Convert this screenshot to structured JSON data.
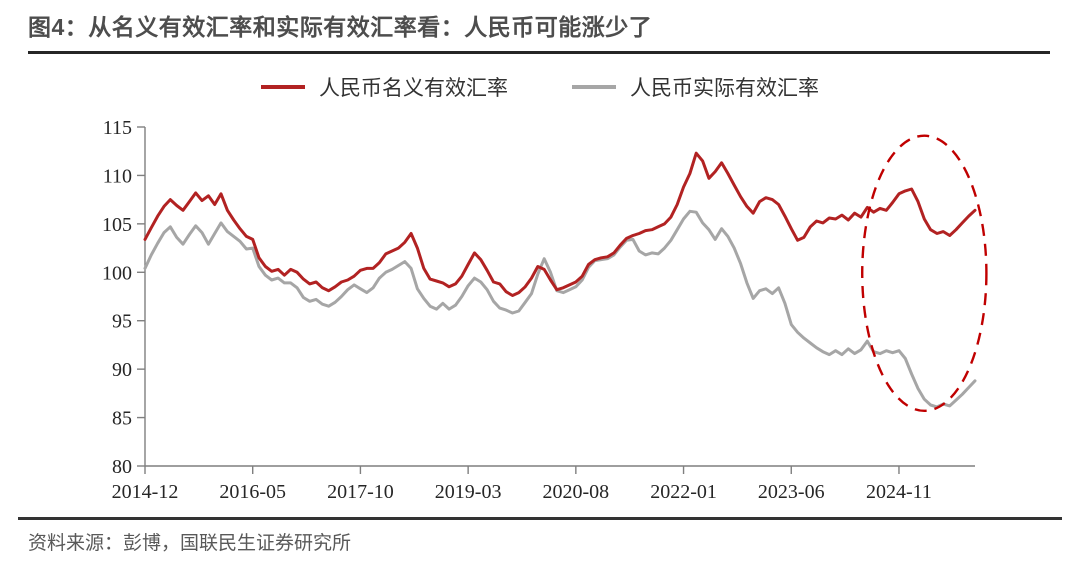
{
  "header": {
    "title": "图4：从名义有效汇率和实际有效汇率看：人民币可能涨少了"
  },
  "legend": [
    {
      "label": "人民币名义有效汇率",
      "color": "#B22222"
    },
    {
      "label": "人民币实际有效汇率",
      "color": "#A6A6A6"
    }
  ],
  "footer": {
    "source": "资料来源：彭博，国联民生证券研究所"
  },
  "chart_data": {
    "type": "line",
    "title": "",
    "xlabel": "",
    "ylabel": "",
    "x_start": "2014-12",
    "x_frequency": "monthly",
    "ylim": [
      80,
      115
    ],
    "y_ticks": [
      80,
      85,
      90,
      95,
      100,
      105,
      110,
      115
    ],
    "x_tick_labels": [
      "2014-12",
      "2016-05",
      "2017-10",
      "2019-03",
      "2020-08",
      "2022-01",
      "2023-06",
      "2024-11"
    ],
    "x_tick_indices": [
      0,
      17,
      34,
      51,
      68,
      85,
      102,
      119
    ],
    "grid": false,
    "legend_position": "top",
    "axis_color": "#7f7f7f",
    "series": [
      {
        "name": "人民币名义有效汇率",
        "color": "#B22222",
        "values": [
          103.4,
          104.6,
          105.8,
          106.8,
          107.5,
          106.9,
          106.4,
          107.3,
          108.2,
          107.4,
          107.9,
          107.0,
          108.1,
          106.4,
          105.4,
          104.5,
          103.7,
          103.4,
          101.5,
          100.6,
          100.1,
          100.3,
          99.7,
          100.3,
          100.0,
          99.3,
          98.8,
          99.0,
          98.4,
          98.1,
          98.5,
          99.0,
          99.2,
          99.6,
          100.2,
          100.4,
          100.4,
          101.0,
          101.9,
          102.2,
          102.5,
          103.1,
          104.0,
          102.5,
          100.4,
          99.3,
          99.1,
          98.9,
          98.5,
          98.8,
          99.6,
          100.8,
          102.0,
          101.3,
          100.2,
          99.0,
          98.8,
          98.0,
          97.6,
          97.9,
          98.5,
          99.4,
          100.6,
          100.3,
          99.2,
          98.2,
          98.4,
          98.7,
          99.0,
          99.6,
          100.8,
          101.3,
          101.5,
          101.6,
          102.0,
          102.8,
          103.5,
          103.8,
          104.0,
          104.3,
          104.4,
          104.7,
          105.0,
          105.7,
          107.0,
          108.8,
          110.2,
          112.3,
          111.5,
          109.7,
          110.4,
          111.3,
          110.2,
          109.0,
          107.8,
          106.8,
          106.1,
          107.3,
          107.7,
          107.5,
          107.0,
          105.8,
          104.5,
          103.3,
          103.6,
          104.7,
          105.3,
          105.1,
          105.6,
          105.5,
          105.9,
          105.4,
          106.1,
          105.7,
          106.7,
          106.2,
          106.6,
          106.4,
          107.2,
          108.1,
          108.4,
          108.6,
          107.3,
          105.5,
          104.4,
          104.0,
          104.2,
          103.8,
          104.4,
          105.1,
          105.8,
          106.4
        ]
      },
      {
        "name": "人民币实际有效汇率",
        "color": "#A6A6A6",
        "values": [
          100.4,
          101.8,
          103.0,
          104.1,
          104.7,
          103.6,
          102.9,
          103.9,
          104.8,
          104.1,
          102.9,
          104.0,
          105.1,
          104.2,
          103.7,
          103.2,
          102.4,
          102.5,
          100.6,
          99.7,
          99.2,
          99.4,
          98.9,
          98.9,
          98.4,
          97.4,
          97.0,
          97.2,
          96.7,
          96.5,
          96.9,
          97.5,
          98.2,
          98.7,
          98.3,
          97.9,
          98.4,
          99.4,
          100.0,
          100.3,
          100.7,
          101.1,
          100.4,
          98.3,
          97.3,
          96.5,
          96.2,
          96.8,
          96.2,
          96.6,
          97.5,
          98.6,
          99.4,
          99.0,
          98.2,
          97.0,
          96.3,
          96.1,
          95.8,
          96.0,
          96.9,
          97.8,
          99.8,
          101.4,
          100.0,
          98.1,
          97.9,
          98.2,
          98.5,
          99.2,
          100.5,
          101.2,
          101.3,
          101.4,
          101.8,
          102.6,
          103.3,
          103.4,
          102.2,
          101.8,
          102.0,
          101.9,
          102.5,
          103.3,
          104.4,
          105.5,
          106.3,
          106.2,
          105.1,
          104.4,
          103.4,
          104.5,
          103.7,
          102.5,
          100.9,
          98.9,
          97.3,
          98.1,
          98.3,
          97.8,
          98.4,
          96.8,
          94.6,
          93.8,
          93.2,
          92.7,
          92.2,
          91.8,
          91.5,
          91.9,
          91.5,
          92.1,
          91.6,
          92.0,
          92.9,
          91.8,
          91.6,
          91.9,
          91.7,
          91.9,
          91.1,
          89.5,
          88.0,
          86.9,
          86.3,
          86.1,
          86.4,
          86.2,
          86.8,
          87.4,
          88.1,
          88.8
        ]
      }
    ],
    "annotation_ellipse": {
      "center_month_index": 123,
      "center_value": 99.9,
      "radius_months": 9.8,
      "radius_value": 14.2,
      "color": "#C00000",
      "style": "dashed"
    }
  }
}
